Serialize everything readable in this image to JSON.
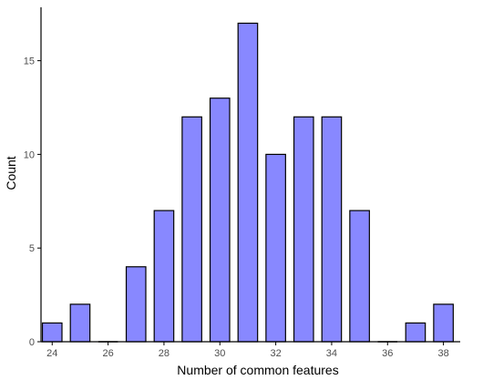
{
  "chart_data": {
    "type": "bar",
    "title": "",
    "xlabel": "Number of common features",
    "ylabel": "Count",
    "xlim": [
      23.6,
      38.6
    ],
    "ylim": [
      0,
      17.85
    ],
    "grid": false,
    "bar_width": 0.7,
    "colors": {
      "bar_fill": "#8888ff",
      "bar_stroke": "#000000",
      "axis": "#000000",
      "tick_text": "#4d4d4d"
    },
    "x_ticks": [
      24,
      26,
      28,
      30,
      32,
      34,
      36,
      38
    ],
    "x_tick_labels": [
      "24",
      "26",
      "28",
      "30",
      "32",
      "34",
      "36",
      "38"
    ],
    "y_ticks": [
      0,
      5,
      10,
      15
    ],
    "y_tick_labels": [
      "0",
      "5",
      "10",
      "15"
    ],
    "x": [
      24,
      25,
      26,
      27,
      28,
      29,
      30,
      31,
      32,
      33,
      34,
      35,
      36,
      37,
      38
    ],
    "values": [
      1,
      2,
      0,
      4,
      7,
      12,
      13,
      17,
      10,
      12,
      12,
      7,
      0,
      1,
      2
    ]
  }
}
